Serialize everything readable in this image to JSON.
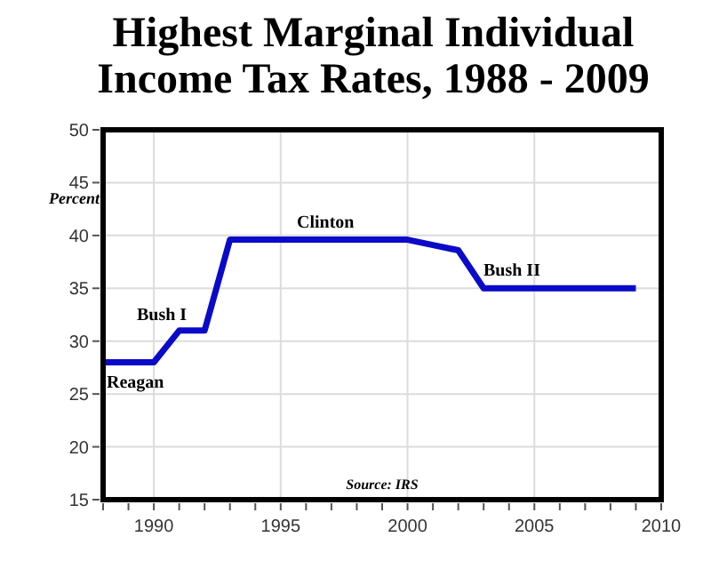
{
  "chart_data": {
    "type": "line",
    "title": "Highest Marginal Individual Income Tax Rates, 1988 - 2009",
    "ylabel": "Percent",
    "x": [
      1988,
      1990,
      1991,
      1992,
      1993,
      2000,
      2001,
      2002,
      2003,
      2009
    ],
    "series": [
      {
        "color": "#0a0ac8",
        "values": [
          28,
          28,
          31,
          31,
          39.6,
          39.6,
          39.1,
          38.6,
          35,
          35
        ]
      }
    ],
    "xlim": [
      1988,
      2010
    ],
    "xticks": [
      {
        "value": 1988,
        "label": null
      },
      {
        "value": 1989,
        "label": null
      },
      1990,
      {
        "value": 1991,
        "label": null
      },
      {
        "value": 1992,
        "label": null
      },
      {
        "value": 1993,
        "label": null
      },
      {
        "value": 1994,
        "label": null
      },
      1995,
      {
        "value": 1996,
        "label": null
      },
      {
        "value": 1997,
        "label": null
      },
      {
        "value": 1998,
        "label": null
      },
      {
        "value": 1999,
        "label": null
      },
      2000,
      {
        "value": 2001,
        "label": null
      },
      {
        "value": 2002,
        "label": null
      },
      {
        "value": 2003,
        "label": null
      },
      {
        "value": 2004,
        "label": null
      },
      2005,
      {
        "value": 2006,
        "label": null
      },
      {
        "value": 2007,
        "label": null
      },
      {
        "value": 2008,
        "label": null
      },
      {
        "value": 2009,
        "label": null
      },
      2010
    ],
    "ylim": [
      15,
      50
    ],
    "yticks": [
      15,
      20,
      25,
      30,
      35,
      40,
      45,
      50
    ],
    "grid": true,
    "marker": "none",
    "line_style": "solid",
    "annotations": [
      "Reagan",
      "Bush I",
      "Clinton",
      "Bush II",
      "Source: IRS"
    ]
  }
}
